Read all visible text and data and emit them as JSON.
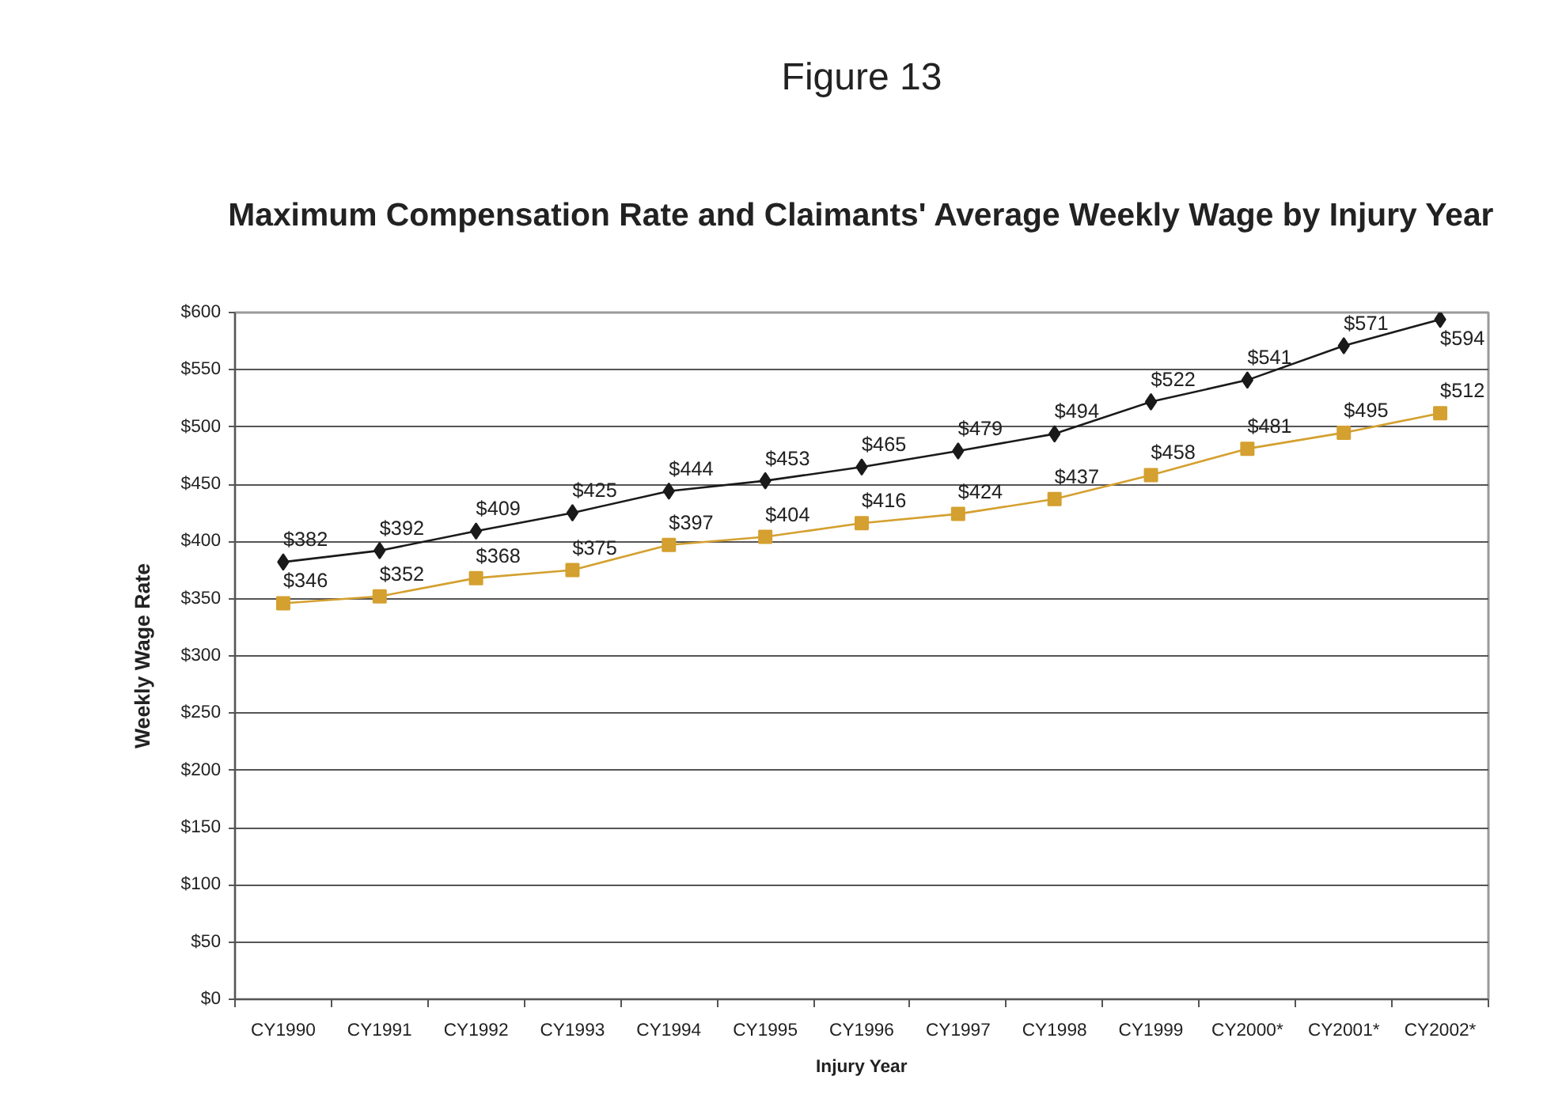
{
  "chart_data": {
    "type": "line",
    "title": "Figure 13",
    "subtitle": "Maximum Compensation Rate and Claimants' Average Weekly Wage by Injury Year",
    "xlabel": "Injury Year",
    "ylabel": "Weekly Wage Rate",
    "categories": [
      "CY1990",
      "CY1991",
      "CY1992",
      "CY1993",
      "CY1994",
      "CY1995",
      "CY1996",
      "CY1997",
      "CY1998",
      "CY1999",
      "CY2000*",
      "CY2001*",
      "CY2002*"
    ],
    "ylim": [
      0,
      600
    ],
    "yticks": [
      {
        "value": 0,
        "label": "$0"
      },
      {
        "value": 50,
        "label": "$50"
      },
      {
        "value": 100,
        "label": "$100"
      },
      {
        "value": 150,
        "label": "$150"
      },
      {
        "value": 200,
        "label": "$200"
      },
      {
        "value": 250,
        "label": "$250"
      },
      {
        "value": 300,
        "label": "$300"
      },
      {
        "value": 350,
        "label": "$350"
      },
      {
        "value": 400,
        "label": "$400"
      },
      {
        "value": 450,
        "label": "$450"
      },
      {
        "value": 500,
        "label": "$500"
      },
      {
        "value": 550,
        "label": "$550"
      },
      {
        "value": 600,
        "label": "$600"
      }
    ],
    "grid": "y",
    "line_style": "solid",
    "series": [
      {
        "color": "#1a1a1a",
        "marker": "diamond",
        "values": [
          382,
          392,
          409,
          425,
          444,
          453,
          465,
          479,
          494,
          522,
          541,
          571,
          594
        ],
        "value_labels": [
          "$382",
          "$392",
          "$409",
          "$425",
          "$444",
          "$453",
          "$465",
          "$479",
          "$494",
          "$522",
          "$541",
          "$571",
          "$594"
        ]
      },
      {
        "color": "#d4a02f",
        "marker": "square",
        "values": [
          346,
          352,
          368,
          375,
          397,
          404,
          416,
          424,
          437,
          458,
          481,
          495,
          512
        ],
        "value_labels": [
          "$346",
          "$352",
          "$368",
          "$375",
          "$397",
          "$404",
          "$416",
          "$424",
          "$437",
          "$458",
          "$481",
          "$495",
          "$512"
        ]
      }
    ]
  }
}
